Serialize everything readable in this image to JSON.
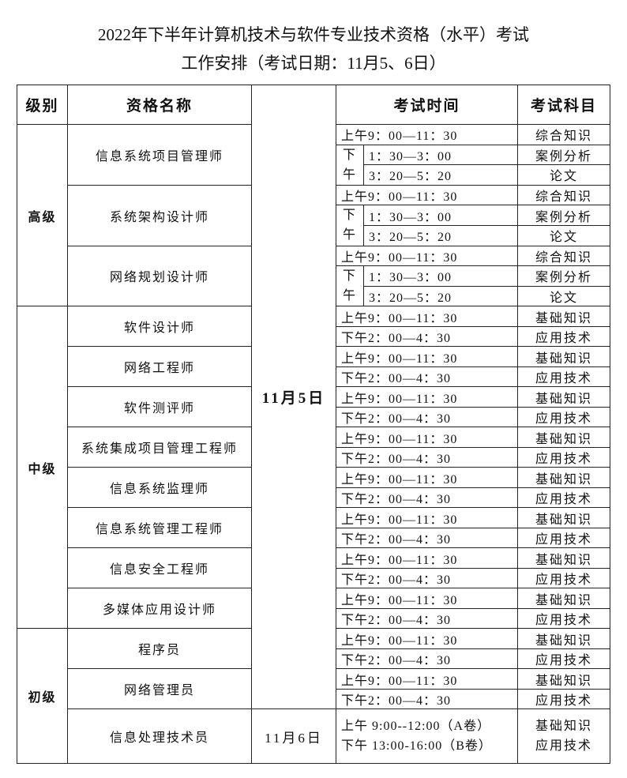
{
  "title_line1": "2022年下半年计算机技术与软件专业技术资格（水平）考试",
  "title_line2": "工作安排（考试日期：11月5、6日）",
  "headers": {
    "level": "级别",
    "name": "资格名称",
    "date": "",
    "time": "考试时间",
    "subject": "考试科目"
  },
  "dates": [
    "11月5日",
    "11月6日"
  ],
  "senior": {
    "level": "高级",
    "pm_label": "下午",
    "items": [
      {
        "name": "信息系统项目管理师",
        "sessions": [
          [
            "上午9：00—11：30",
            "综合知识"
          ],
          [
            "1：30—3：00",
            "案例分析"
          ],
          [
            "3：20—5：20",
            "论文"
          ]
        ]
      },
      {
        "name": "系统架构设计师",
        "sessions": [
          [
            "上午9：00—11：30",
            "综合知识"
          ],
          [
            "1：30—3：00",
            "案例分析"
          ],
          [
            "3：20—5：20",
            "论文"
          ]
        ]
      },
      {
        "name": "网络规划设计师",
        "sessions": [
          [
            "上午9：00—11：30",
            "综合知识"
          ],
          [
            "1：30—3：00",
            "案例分析"
          ],
          [
            "3：20—5：20",
            "论文"
          ]
        ]
      }
    ]
  },
  "middle": {
    "level": "中级",
    "items": [
      {
        "name": "软件设计师",
        "sessions": [
          [
            "上午9：00—11：30",
            "基础知识"
          ],
          [
            "下午2：00—4：30",
            "应用技术"
          ]
        ]
      },
      {
        "name": "网络工程师",
        "sessions": [
          [
            "上午9：00—11：30",
            "基础知识"
          ],
          [
            "下午2：00—4：30",
            "应用技术"
          ]
        ]
      },
      {
        "name": "软件测评师",
        "sessions": [
          [
            "上午9：00—11：30",
            "基础知识"
          ],
          [
            "下午2：00—4：30",
            "应用技术"
          ]
        ]
      },
      {
        "name": "系统集成项目管理工程师",
        "sessions": [
          [
            "上午9：00—11：30",
            "基础知识"
          ],
          [
            "下午2：00—4：30",
            "应用技术"
          ]
        ]
      },
      {
        "name": "信息系统监理师",
        "sessions": [
          [
            "上午9：00—11：30",
            "基础知识"
          ],
          [
            "下午2：00—4：30",
            "应用技术"
          ]
        ]
      },
      {
        "name": "信息系统管理工程师",
        "sessions": [
          [
            "上午9：00—11：30",
            "基础知识"
          ],
          [
            "下午2：00—4：30",
            "应用技术"
          ]
        ]
      },
      {
        "name": "信息安全工程师",
        "sessions": [
          [
            "上午9：00—11：30",
            "基础知识"
          ],
          [
            "下午2：00—4：30",
            "应用技术"
          ]
        ]
      },
      {
        "name": "多媒体应用设计师",
        "sessions": [
          [
            "上午9：00—11：30",
            "基础知识"
          ],
          [
            "下午2：00—4：30",
            "应用技术"
          ]
        ]
      }
    ]
  },
  "junior": {
    "level": "初级",
    "items": [
      {
        "name": "程序员",
        "sessions": [
          [
            "上午9：00—11：30",
            "基础知识"
          ],
          [
            "下午2：00—4：30",
            "应用技术"
          ]
        ]
      },
      {
        "name": "网络管理员",
        "sessions": [
          [
            "上午9：00—11：30",
            "基础知识"
          ],
          [
            "下午2：00—4：30",
            "应用技术"
          ]
        ]
      }
    ],
    "last": {
      "name": "信息处理技术员",
      "times": [
        "上午 9:00--12:00（A卷）",
        "下午 13:00-16:00（B卷）"
      ],
      "subjects": [
        "基础知识",
        "应用技术"
      ]
    }
  }
}
